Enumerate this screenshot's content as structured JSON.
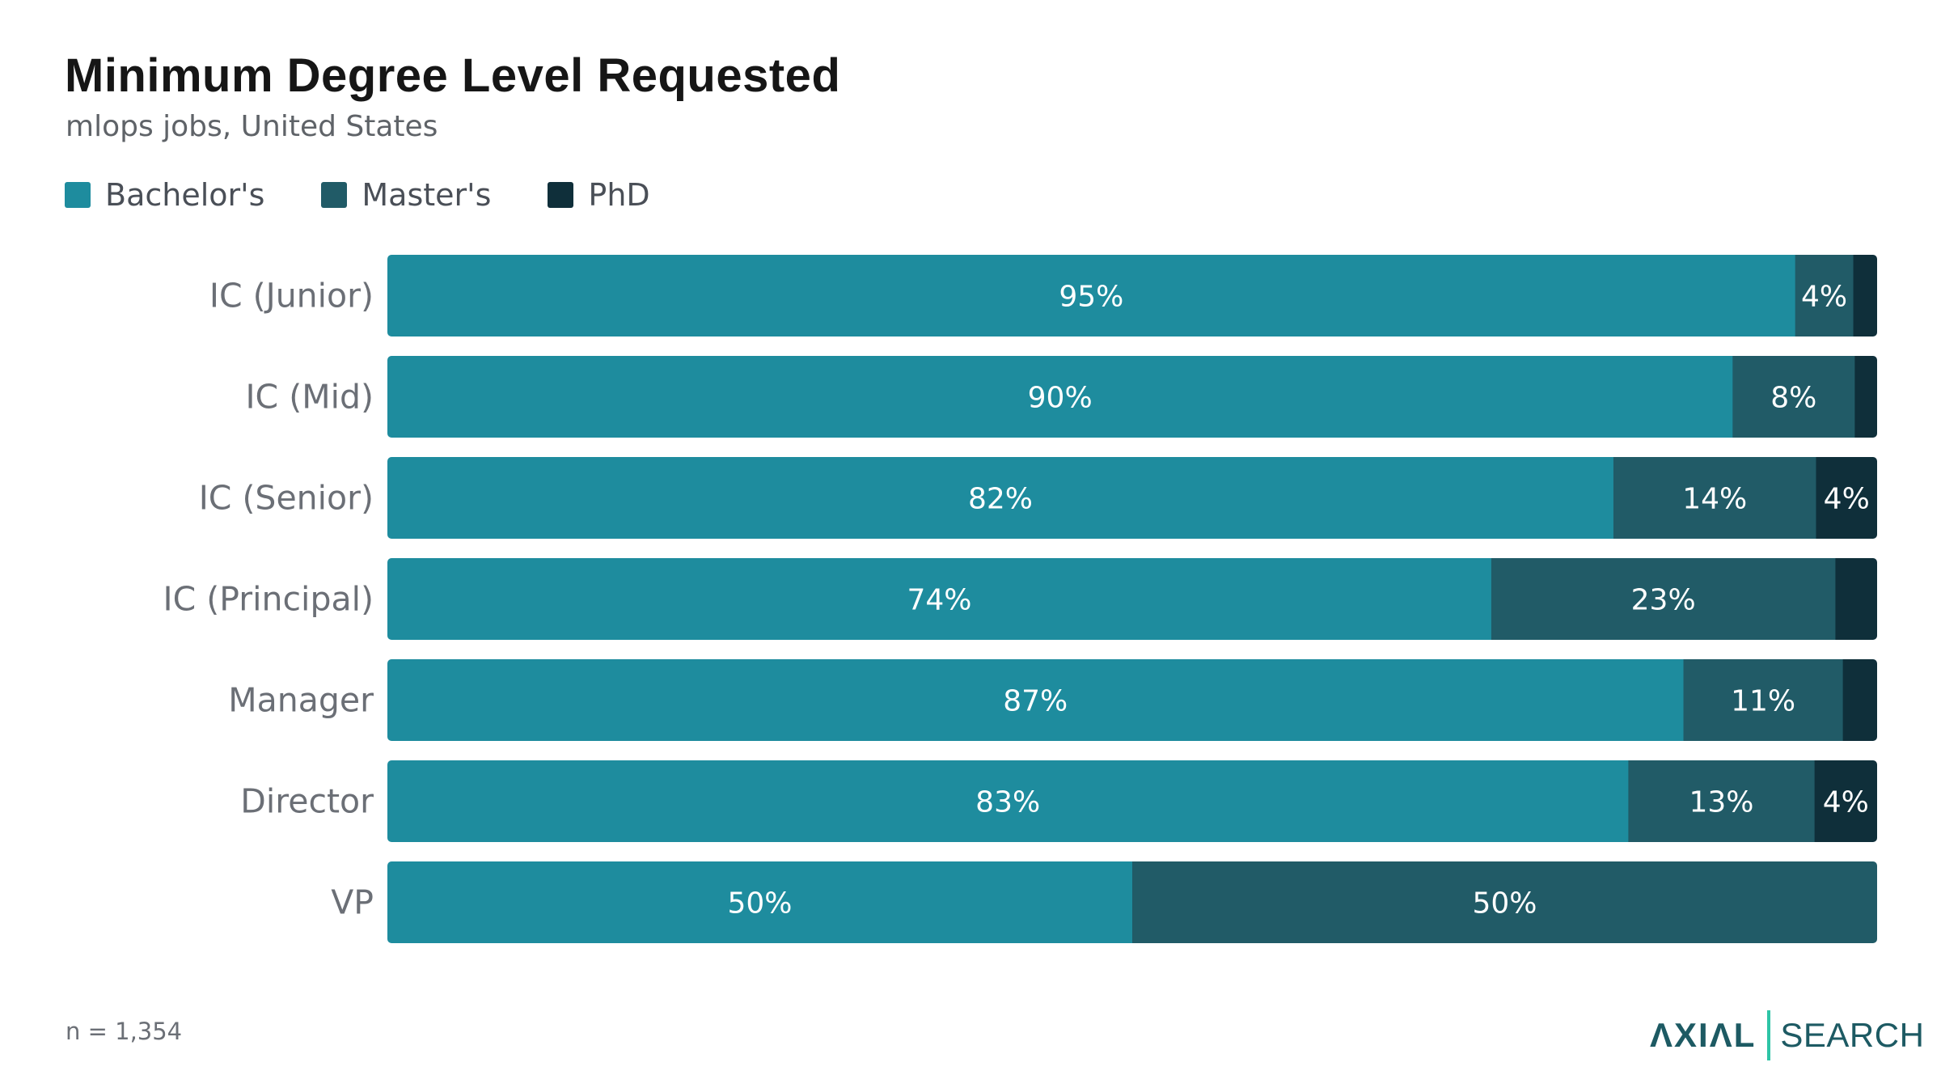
{
  "title": "Minimum Degree Level Requested",
  "subtitle": "mlops jobs, United States",
  "footnote": "n = 1,354",
  "logo": {
    "primary": "ΛXIΛL",
    "secondary": "SEARCH"
  },
  "colors": {
    "bachelors": "#1e8c9e",
    "masters": "#215b67",
    "phd": "#0f2f3a",
    "label_text": "#ffffff",
    "category_text": "#6b6f76"
  },
  "chart_data": {
    "type": "bar",
    "orientation": "horizontal",
    "stacked": true,
    "normalized": true,
    "title": "Minimum Degree Level Requested",
    "subtitle": "mlops jobs, United States",
    "legend_position": "top-left",
    "xlim": [
      0,
      100
    ],
    "grid": false,
    "categories": [
      "IC (Junior)",
      "IC (Mid)",
      "IC (Senior)",
      "IC (Principal)",
      "Manager",
      "Director",
      "VP"
    ],
    "series": [
      {
        "name": "Bachelor's",
        "color": "#1e8c9e",
        "values": [
          94.5,
          90.3,
          82.3,
          74.1,
          87.0,
          83.3,
          50.0
        ],
        "labels": [
          "95%",
          "90%",
          "82%",
          "74%",
          "87%",
          "83%",
          "50%"
        ]
      },
      {
        "name": "Master's",
        "color": "#215b67",
        "values": [
          3.9,
          8.2,
          13.6,
          23.1,
          10.7,
          12.5,
          50.0
        ],
        "labels": [
          "4%",
          "8%",
          "14%",
          "23%",
          "11%",
          "13%",
          "50%"
        ]
      },
      {
        "name": "PhD",
        "color": "#0f2f3a",
        "values": [
          1.6,
          1.5,
          4.1,
          2.8,
          2.3,
          4.2,
          0
        ],
        "labels": [
          "",
          "",
          "4%",
          "",
          "",
          "4%",
          ""
        ]
      }
    ]
  }
}
